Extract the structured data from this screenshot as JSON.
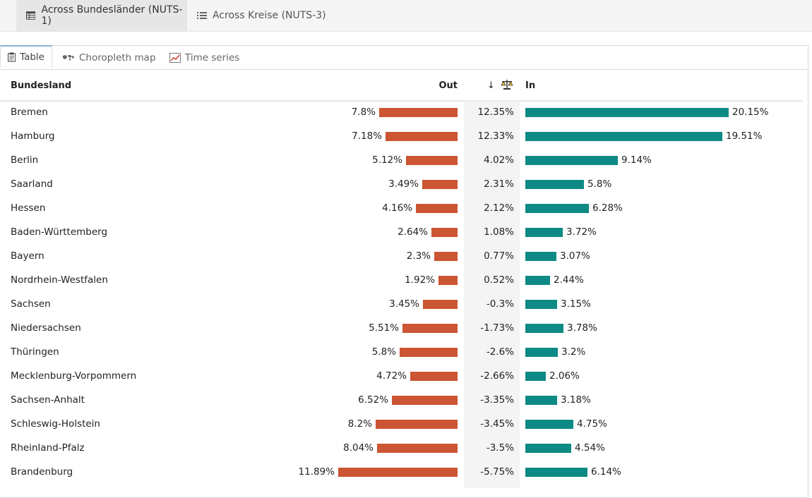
{
  "top_tabs": [
    {
      "label": "Across Bundesländer (NUTS-1)",
      "active": true,
      "icon": "table-icon"
    },
    {
      "label": "Across Kreise (NUTS-3)",
      "active": false,
      "icon": "list-icon"
    }
  ],
  "sub_tabs": [
    {
      "label": "Table",
      "active": true,
      "icon": "clipboard-icon"
    },
    {
      "label": "Choropleth map",
      "active": false,
      "icon": "world-map-icon"
    },
    {
      "label": "Time series",
      "active": false,
      "icon": "line-chart-icon"
    }
  ],
  "table": {
    "headers": {
      "name": "Bundesland",
      "out": "Out",
      "sort_indicator": "↓",
      "in": "In"
    },
    "rows": [
      {
        "name": "Bremen",
        "out": 7.8,
        "out_label": "7.8%",
        "balance": "12.35%",
        "in": 20.15,
        "in_label": "20.15%"
      },
      {
        "name": "Hamburg",
        "out": 7.18,
        "out_label": "7.18%",
        "balance": "12.33%",
        "in": 19.51,
        "in_label": "19.51%"
      },
      {
        "name": "Berlin",
        "out": 5.12,
        "out_label": "5.12%",
        "balance": "4.02%",
        "in": 9.14,
        "in_label": "9.14%"
      },
      {
        "name": "Saarland",
        "out": 3.49,
        "out_label": "3.49%",
        "balance": "2.31%",
        "in": 5.8,
        "in_label": "5.8%"
      },
      {
        "name": "Hessen",
        "out": 4.16,
        "out_label": "4.16%",
        "balance": "2.12%",
        "in": 6.28,
        "in_label": "6.28%"
      },
      {
        "name": "Baden-Württemberg",
        "out": 2.64,
        "out_label": "2.64%",
        "balance": "1.08%",
        "in": 3.72,
        "in_label": "3.72%"
      },
      {
        "name": "Bayern",
        "out": 2.3,
        "out_label": "2.3%",
        "balance": "0.77%",
        "in": 3.07,
        "in_label": "3.07%"
      },
      {
        "name": "Nordrhein-Westfalen",
        "out": 1.92,
        "out_label": "1.92%",
        "balance": "0.52%",
        "in": 2.44,
        "in_label": "2.44%"
      },
      {
        "name": "Sachsen",
        "out": 3.45,
        "out_label": "3.45%",
        "balance": "-0.3%",
        "in": 3.15,
        "in_label": "3.15%"
      },
      {
        "name": "Niedersachsen",
        "out": 5.51,
        "out_label": "5.51%",
        "balance": "-1.73%",
        "in": 3.78,
        "in_label": "3.78%"
      },
      {
        "name": "Thüringen",
        "out": 5.8,
        "out_label": "5.8%",
        "balance": "-2.6%",
        "in": 3.2,
        "in_label": "3.2%"
      },
      {
        "name": "Mecklenburg-Vorpommern",
        "out": 4.72,
        "out_label": "4.72%",
        "balance": "-2.66%",
        "in": 2.06,
        "in_label": "2.06%"
      },
      {
        "name": "Sachsen-Anhalt",
        "out": 6.52,
        "out_label": "6.52%",
        "balance": "-3.35%",
        "in": 3.18,
        "in_label": "3.18%"
      },
      {
        "name": "Schleswig-Holstein",
        "out": 8.2,
        "out_label": "8.2%",
        "balance": "-3.45%",
        "in": 4.75,
        "in_label": "4.75%"
      },
      {
        "name": "Rheinland-Pfalz",
        "out": 8.04,
        "out_label": "8.04%",
        "balance": "-3.5%",
        "in": 4.54,
        "in_label": "4.54%"
      },
      {
        "name": "Brandenburg",
        "out": 11.89,
        "out_label": "11.89%",
        "balance": "-5.75%",
        "in": 6.14,
        "in_label": "6.14%"
      }
    ]
  },
  "colors": {
    "out_bar": "#cc5533",
    "in_bar": "#0e8a84",
    "balance_bg": "#f4f4f4"
  }
}
